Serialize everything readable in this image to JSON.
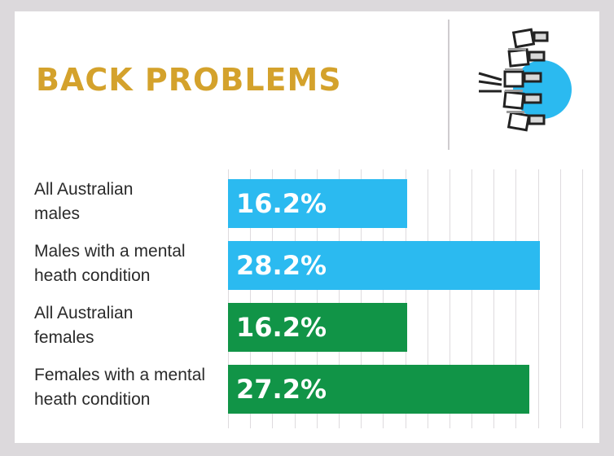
{
  "header": {
    "title": "BACK PROBLEMS",
    "icon": "spine-icon"
  },
  "colors": {
    "title": "#d4a22c",
    "males": "#2bbaf0",
    "females": "#119447",
    "icon_circle": "#2bbaf0"
  },
  "chart_data": {
    "type": "bar",
    "orientation": "horizontal",
    "title": "BACK PROBLEMS",
    "unit": "%",
    "xlim": [
      0,
      32
    ],
    "categories": [
      "All Australian males",
      "Males with a mental heath condition",
      "All Australian females",
      "Females with a mental heath condition"
    ],
    "label_lines": [
      [
        "All Australian",
        "males"
      ],
      [
        "Males with a mental",
        "heath condition"
      ],
      [
        "All Australian",
        "females"
      ],
      [
        "Females with a mental",
        "heath condition"
      ]
    ],
    "values": [
      16.2,
      28.2,
      16.2,
      27.2
    ],
    "value_labels": [
      "16.2%",
      "28.2%",
      "16.2%",
      "27.2%"
    ],
    "bar_colors": [
      "#2bbaf0",
      "#2bbaf0",
      "#119447",
      "#119447"
    ],
    "grid": true
  }
}
